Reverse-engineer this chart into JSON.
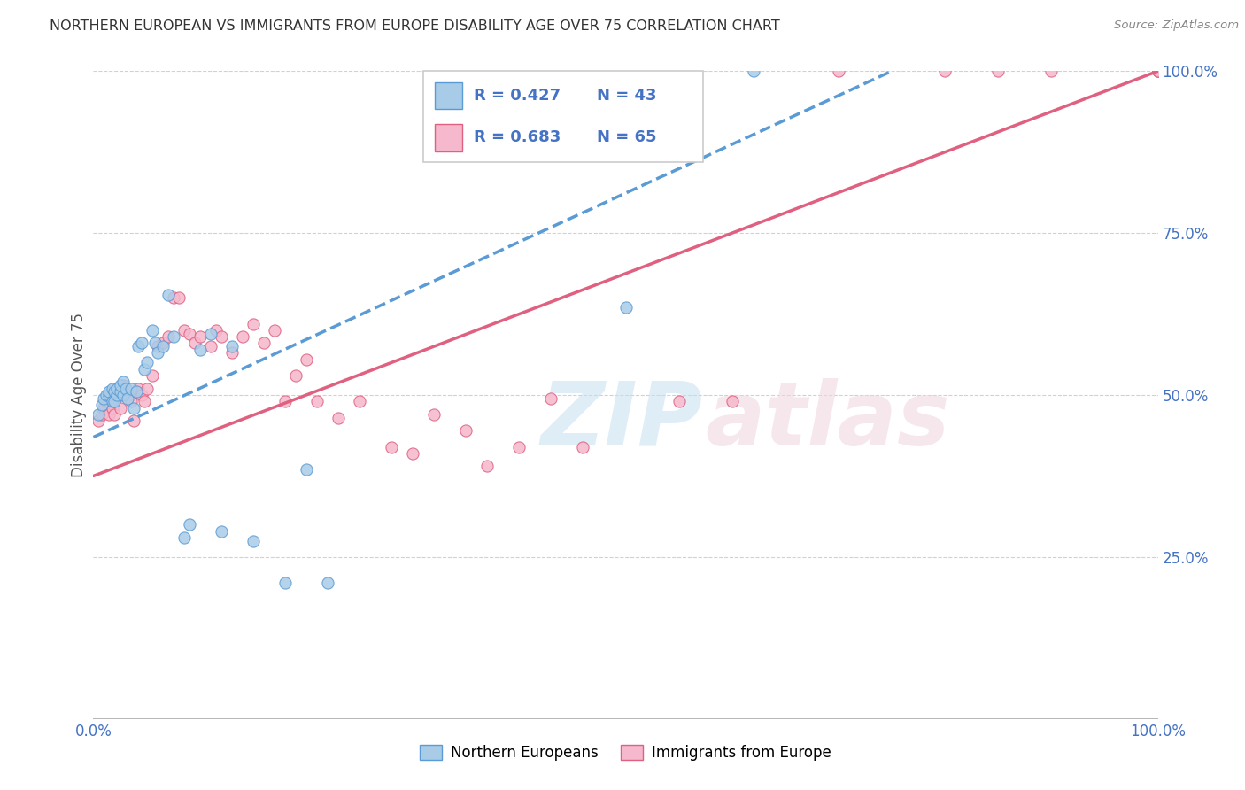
{
  "title": "NORTHERN EUROPEAN VS IMMIGRANTS FROM EUROPE DISABILITY AGE OVER 75 CORRELATION CHART",
  "source": "Source: ZipAtlas.com",
  "ylabel": "Disability Age Over 75",
  "xlim": [
    0,
    1.0
  ],
  "ylim": [
    0,
    1.0
  ],
  "legend_r1": "R = 0.427",
  "legend_n1": "N = 43",
  "legend_r2": "R = 0.683",
  "legend_n2": "N = 65",
  "legend_label1": "Northern Europeans",
  "legend_label2": "Immigrants from Europe",
  "color_blue": "#a8cce8",
  "color_pink": "#f5b8cc",
  "color_blue_line": "#5b9bd5",
  "color_pink_line": "#e06080",
  "color_r_value": "#4472c4",
  "blue_x": [
    0.005,
    0.008,
    0.01,
    0.012,
    0.015,
    0.015,
    0.018,
    0.018,
    0.02,
    0.02,
    0.022,
    0.022,
    0.025,
    0.025,
    0.028,
    0.028,
    0.03,
    0.032,
    0.035,
    0.038,
    0.04,
    0.042,
    0.045,
    0.048,
    0.05,
    0.055,
    0.058,
    0.06,
    0.065,
    0.07,
    0.075,
    0.085,
    0.09,
    0.1,
    0.11,
    0.12,
    0.13,
    0.15,
    0.18,
    0.2,
    0.22,
    0.5,
    0.62
  ],
  "blue_y": [
    0.47,
    0.485,
    0.495,
    0.5,
    0.5,
    0.505,
    0.49,
    0.51,
    0.49,
    0.505,
    0.5,
    0.51,
    0.505,
    0.515,
    0.5,
    0.52,
    0.51,
    0.495,
    0.51,
    0.48,
    0.505,
    0.575,
    0.58,
    0.54,
    0.55,
    0.6,
    0.58,
    0.565,
    0.575,
    0.655,
    0.59,
    0.28,
    0.3,
    0.57,
    0.595,
    0.29,
    0.575,
    0.275,
    0.21,
    0.385,
    0.21,
    0.635,
    1.0
  ],
  "pink_x": [
    0.005,
    0.008,
    0.01,
    0.012,
    0.015,
    0.015,
    0.018,
    0.018,
    0.02,
    0.02,
    0.022,
    0.025,
    0.025,
    0.028,
    0.03,
    0.032,
    0.035,
    0.038,
    0.04,
    0.042,
    0.045,
    0.048,
    0.05,
    0.055,
    0.06,
    0.065,
    0.07,
    0.075,
    0.08,
    0.085,
    0.09,
    0.095,
    0.1,
    0.11,
    0.115,
    0.12,
    0.13,
    0.14,
    0.15,
    0.16,
    0.17,
    0.18,
    0.19,
    0.2,
    0.21,
    0.23,
    0.25,
    0.28,
    0.3,
    0.32,
    0.35,
    0.37,
    0.4,
    0.43,
    0.46,
    0.55,
    0.6,
    0.7,
    0.8,
    0.85,
    0.9,
    1.0,
    1.0,
    1.0,
    1.0
  ],
  "pink_y": [
    0.46,
    0.47,
    0.48,
    0.49,
    0.47,
    0.49,
    0.48,
    0.5,
    0.47,
    0.49,
    0.505,
    0.48,
    0.5,
    0.515,
    0.51,
    0.5,
    0.49,
    0.46,
    0.505,
    0.51,
    0.5,
    0.49,
    0.51,
    0.53,
    0.575,
    0.58,
    0.59,
    0.65,
    0.65,
    0.6,
    0.595,
    0.58,
    0.59,
    0.575,
    0.6,
    0.59,
    0.565,
    0.59,
    0.61,
    0.58,
    0.6,
    0.49,
    0.53,
    0.555,
    0.49,
    0.465,
    0.49,
    0.42,
    0.41,
    0.47,
    0.445,
    0.39,
    0.42,
    0.495,
    0.42,
    0.49,
    0.49,
    1.0,
    1.0,
    1.0,
    1.0,
    1.0,
    1.0,
    1.0,
    1.0
  ],
  "blue_line_x0": 0.0,
  "blue_line_y0": 0.435,
  "blue_line_x1": 0.75,
  "blue_line_y1": 1.0,
  "pink_line_x0": 0.0,
  "pink_line_y0": 0.375,
  "pink_line_x1": 1.0,
  "pink_line_y1": 1.0
}
